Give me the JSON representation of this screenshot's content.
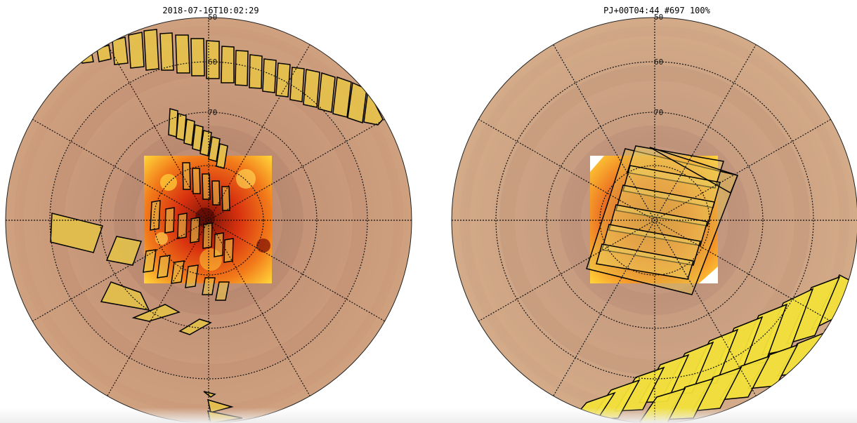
{
  "left_panel": {
    "timestamp": "2018-07-16T10:02:29",
    "latitude_labels": [
      "50",
      "60",
      "70"
    ]
  },
  "right_panel": {
    "status": "PJ+00T04:44 #697 100%",
    "latitude_labels": [
      "50",
      "60",
      "70"
    ]
  },
  "colors": {
    "planet_base": "#c79a78",
    "planet_inner": "#b8876a",
    "footprint_fill": "#e6c24a",
    "footprint_fill_bright": "#f2e03a",
    "footprint_stroke": "#000000",
    "hotspot": "#e8421a",
    "hotspot_light": "#ffd23a",
    "grid": "#111111"
  }
}
